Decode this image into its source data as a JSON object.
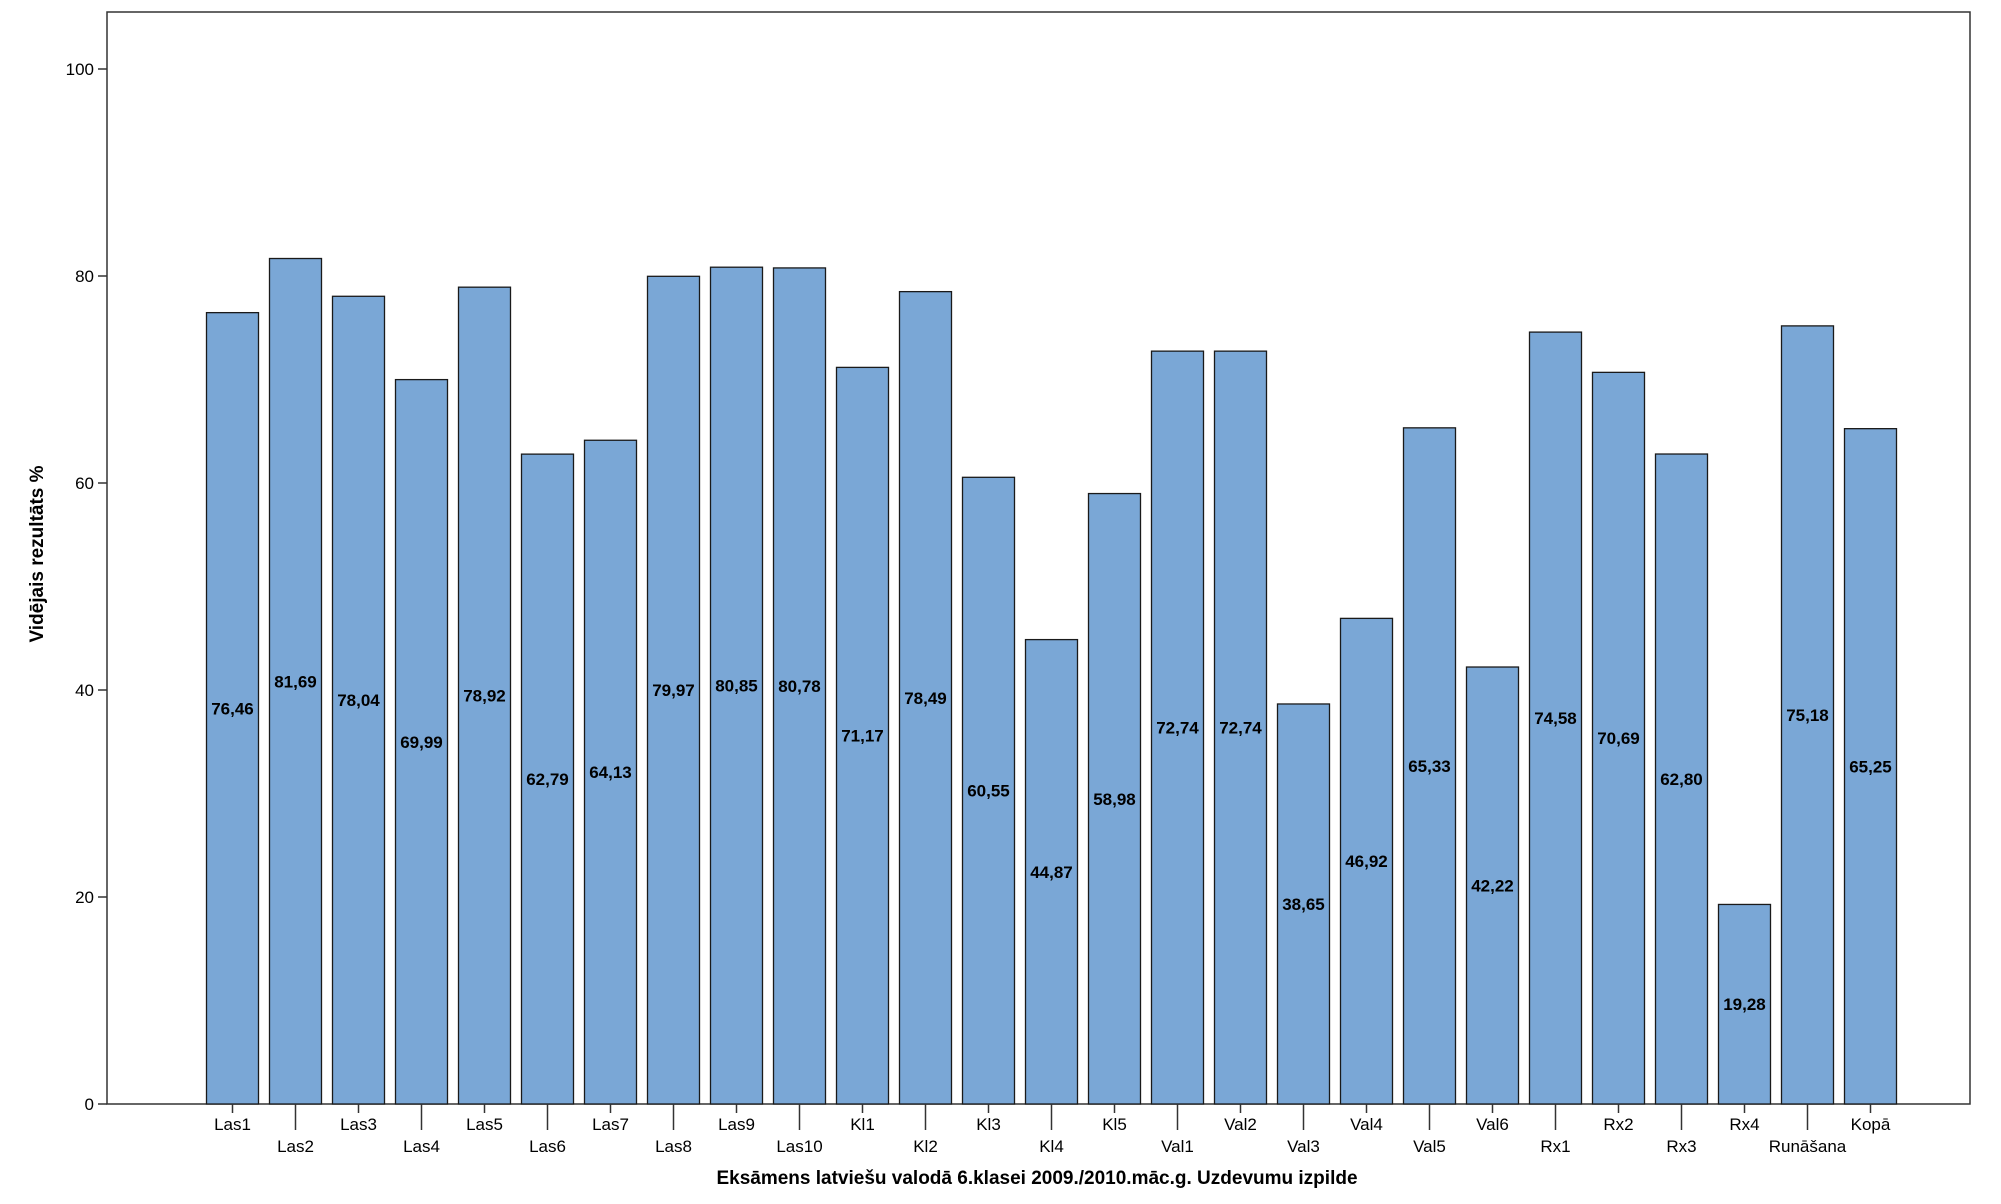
{
  "chart_data": {
    "type": "bar",
    "title": "",
    "xlabel": "Eksāmens latviešu valodā 6.klasei 2009./2010.māc.g. Uzdevumu izpilde",
    "ylabel": "Vidējais rezultāts %",
    "ylim": [
      0,
      105
    ],
    "yticks": [
      0,
      20,
      40,
      60,
      80,
      100
    ],
    "grid": false,
    "bar_color": "#7aa7d6",
    "categories": [
      "Las1",
      "Las2",
      "Las3",
      "Las4",
      "Las5",
      "Las6",
      "Las7",
      "Las8",
      "Las9",
      "Las10",
      "Kl1",
      "Kl2",
      "Kl3",
      "Kl4",
      "Kl5",
      "Val1",
      "Val2",
      "Val3",
      "Val4",
      "Val5",
      "Val6",
      "Rx1",
      "Rx2",
      "Rx3",
      "Rx4",
      "Runāšana",
      "Kopā"
    ],
    "values": [
      76.46,
      81.69,
      78.04,
      69.99,
      78.92,
      62.79,
      64.13,
      79.97,
      80.85,
      80.78,
      71.17,
      78.49,
      60.55,
      44.87,
      58.98,
      72.74,
      72.74,
      38.65,
      46.92,
      65.33,
      42.22,
      74.58,
      70.69,
      62.8,
      19.28,
      75.18,
      65.25
    ],
    "value_labels": [
      "76,46",
      "81,69",
      "78,04",
      "69,99",
      "78,92",
      "62,79",
      "64,13",
      "79,97",
      "80,85",
      "80,78",
      "71,17",
      "78,49",
      "60,55",
      "44,87",
      "58,98",
      "72,74",
      "72,74",
      "38,65",
      "46,92",
      "65,33",
      "42,22",
      "74,58",
      "70,69",
      "62,80",
      "19,28",
      "75,18",
      "65,25"
    ]
  }
}
